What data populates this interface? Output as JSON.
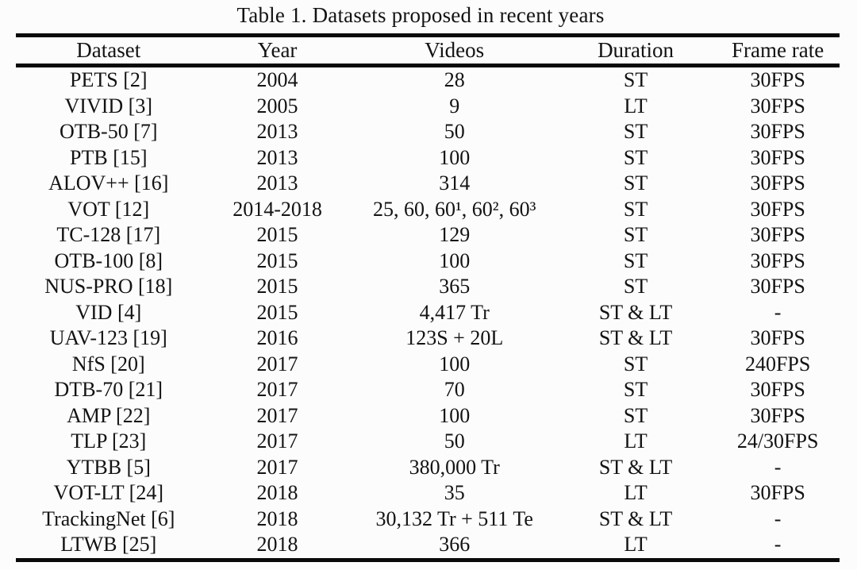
{
  "title": "Table 1. Datasets proposed in recent years",
  "table": {
    "columns": [
      "Dataset",
      "Year",
      "Videos",
      "Duration",
      "Frame rate"
    ],
    "rows": [
      [
        "PETS [2]",
        "2004",
        "28",
        "ST",
        "30FPS"
      ],
      [
        "VIVID [3]",
        "2005",
        "9",
        "LT",
        "30FPS"
      ],
      [
        "OTB-50 [7]",
        "2013",
        "50",
        "ST",
        "30FPS"
      ],
      [
        "PTB [15]",
        "2013",
        "100",
        "ST",
        "30FPS"
      ],
      [
        "ALOV++ [16]",
        "2013",
        "314",
        "ST",
        "30FPS"
      ],
      [
        "VOT [12]",
        "2014-2018",
        "25, 60, 60¹, 60², 60³",
        "ST",
        "30FPS"
      ],
      [
        "TC-128 [17]",
        "2015",
        "129",
        "ST",
        "30FPS"
      ],
      [
        "OTB-100 [8]",
        "2015",
        "100",
        "ST",
        "30FPS"
      ],
      [
        "NUS-PRO [18]",
        "2015",
        "365",
        "ST",
        "30FPS"
      ],
      [
        "VID [4]",
        "2015",
        "4,417 Tr",
        "ST & LT",
        "-"
      ],
      [
        "UAV-123 [19]",
        "2016",
        "123S + 20L",
        "ST & LT",
        "30FPS"
      ],
      [
        "NfS [20]",
        "2017",
        "100",
        "ST",
        "240FPS"
      ],
      [
        "DTB-70 [21]",
        "2017",
        "70",
        "ST",
        "30FPS"
      ],
      [
        "AMP [22]",
        "2017",
        "100",
        "ST",
        "30FPS"
      ],
      [
        "TLP [23]",
        "2017",
        "50",
        "LT",
        "24/30FPS"
      ],
      [
        "YTBB [5]",
        "2017",
        "380,000 Tr",
        "ST & LT",
        "-"
      ],
      [
        "VOT-LT [24]",
        "2018",
        "35",
        "LT",
        "30FPS"
      ],
      [
        "TrackingNet [6]",
        "2018",
        "30,132 Tr + 511 Te",
        "ST & LT",
        "-"
      ],
      [
        "LTWB [25]",
        "2018",
        "366",
        "LT",
        "-"
      ]
    ],
    "colors": {
      "text": "#131313",
      "rule": "#0a0a0a",
      "background": "#fcfcfc"
    }
  }
}
